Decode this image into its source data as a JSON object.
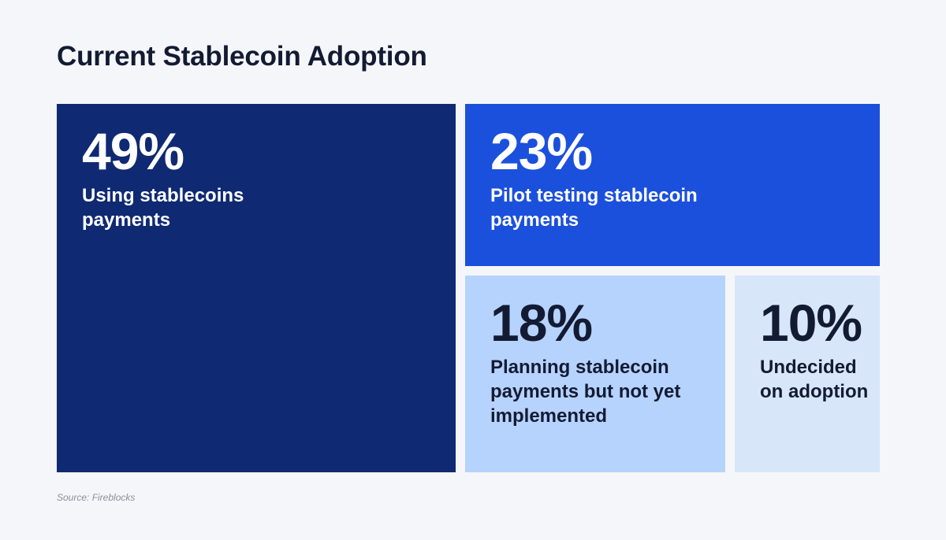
{
  "chart_data": {
    "type": "treemap",
    "title": "Current Stablecoin Adoption",
    "unit": "%",
    "segments": [
      {
        "value": 49,
        "label": "Using stablecoins payments",
        "label_lines": [
          "Using stablecoins",
          "payments"
        ],
        "color": "#0f2a73",
        "text_color": "#ffffff"
      },
      {
        "value": 23,
        "label": "Pilot testing stablecoin payments",
        "label_lines": [
          "Pilot testing stablecoin",
          "payments"
        ],
        "color": "#1b50dc",
        "text_color": "#ffffff"
      },
      {
        "value": 18,
        "label": "Planning stablecoin payments but not yet implemented",
        "label_lines": [
          "Planning stablecoin",
          "payments but not yet",
          "implemented"
        ],
        "color": "#b6d3fd",
        "text_color": "#131b33"
      },
      {
        "value": 10,
        "label": "Undecided on adoption",
        "label_lines": [
          "Undecided",
          "on adoption"
        ],
        "color": "#d8e6fa",
        "text_color": "#131b33"
      }
    ],
    "source": "Source: Fireblocks"
  }
}
